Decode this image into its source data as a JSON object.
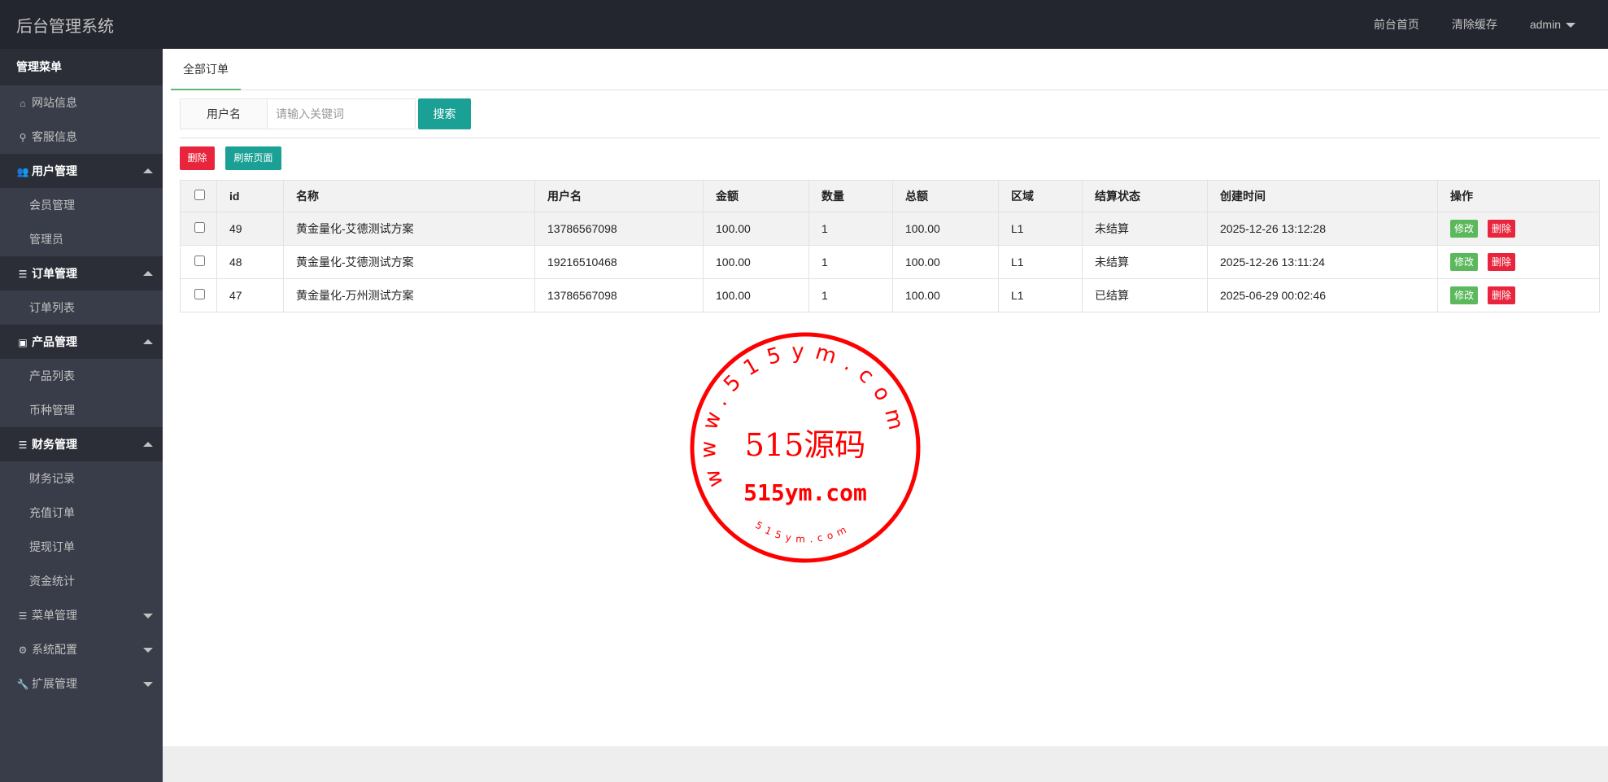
{
  "header": {
    "title": "后台管理系统",
    "nav": [
      "前台首页",
      "清除缓存"
    ],
    "user": "admin"
  },
  "sidebar": {
    "title": "管理菜单",
    "items": [
      {
        "label": "网站信息",
        "icon": "home-icon",
        "type": "top"
      },
      {
        "label": "客服信息",
        "icon": "link-icon",
        "type": "top"
      },
      {
        "label": "用户管理",
        "icon": "users-icon",
        "type": "group",
        "expanded": true
      },
      {
        "label": "会员管理",
        "type": "sub"
      },
      {
        "label": "管理员",
        "type": "sub"
      },
      {
        "label": "订单管理",
        "icon": "list-icon",
        "type": "group",
        "expanded": true
      },
      {
        "label": "订单列表",
        "type": "sub"
      },
      {
        "label": "产品管理",
        "icon": "box-icon",
        "type": "group",
        "expanded": true
      },
      {
        "label": "产品列表",
        "type": "sub"
      },
      {
        "label": "币种管理",
        "type": "sub"
      },
      {
        "label": "财务管理",
        "icon": "list-icon",
        "type": "group",
        "expanded": true
      },
      {
        "label": "财务记录",
        "type": "sub"
      },
      {
        "label": "充值订单",
        "type": "sub"
      },
      {
        "label": "提现订单",
        "type": "sub"
      },
      {
        "label": "资金统计",
        "type": "sub"
      },
      {
        "label": "菜单管理",
        "icon": "list-icon",
        "type": "group",
        "expanded": false
      },
      {
        "label": "系统配置",
        "icon": "gears-icon",
        "type": "group",
        "expanded": false
      },
      {
        "label": "扩展管理",
        "icon": "wrench-icon",
        "type": "group",
        "expanded": false
      }
    ]
  },
  "main": {
    "tab": "全部订单",
    "search": {
      "label": "用户名",
      "placeholder": "请输入关键词",
      "value": "",
      "button": "搜索"
    },
    "actions": {
      "delete": "删除",
      "refresh": "刷新页面"
    },
    "table": {
      "columns": [
        "id",
        "名称",
        "用户名",
        "金额",
        "数量",
        "总额",
        "区域",
        "结算状态",
        "创建时间",
        "操作"
      ],
      "rows": [
        [
          "49",
          "黄金量化-艾德测试方案",
          "13786567098",
          "100.00",
          "1",
          "100.00",
          "L1",
          "未结算",
          "2025-12-26 13:12:28"
        ],
        [
          "48",
          "黄金量化-艾德测试方案",
          "19216510468",
          "100.00",
          "1",
          "100.00",
          "L1",
          "未结算",
          "2025-12-26 13:11:24"
        ],
        [
          "47",
          "黄金量化-万州测试方案",
          "13786567098",
          "100.00",
          "1",
          "100.00",
          "L1",
          "已结算",
          "2025-06-29 00:02:46"
        ]
      ],
      "row_actions": {
        "edit": "修改",
        "delete": "删除"
      }
    }
  },
  "watermark": {
    "ring_text": "www.515ym.com",
    "center": "515源码",
    "domain": "515ym.com",
    "bottom": "515ym.com",
    "color": "#ff0000"
  },
  "colors": {
    "header": "#23262e",
    "sidebar": "#393d49",
    "accent": "#1aa094",
    "danger": "#e8253c",
    "success": "#5cb85c",
    "tab_underline": "#5fb878"
  }
}
